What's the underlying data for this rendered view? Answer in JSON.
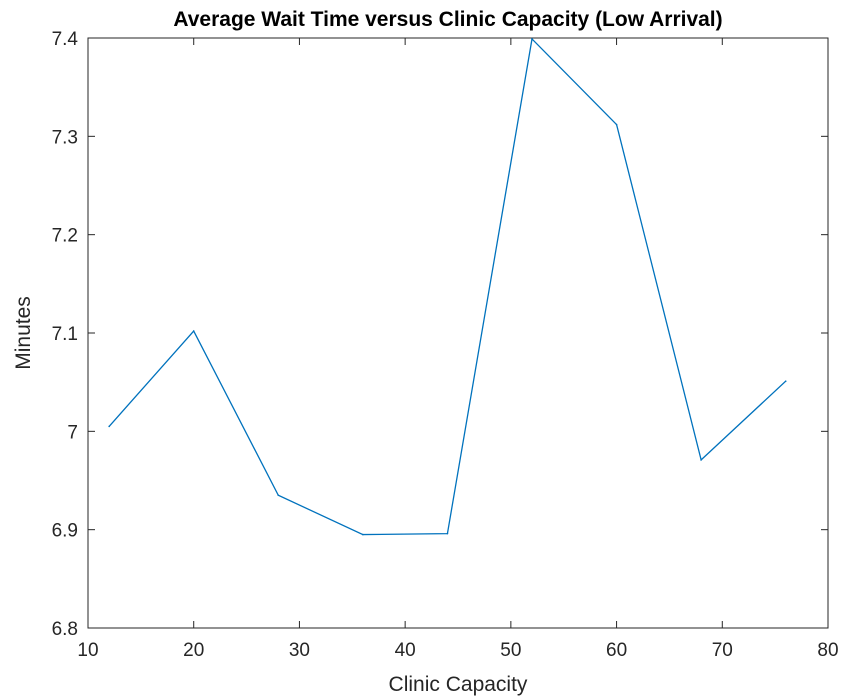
{
  "chart_data": {
    "type": "line",
    "title": "Average Wait Time versus Clinic Capacity (Low Arrival)",
    "xlabel": "Clinic Capacity",
    "ylabel": "Minutes",
    "xlim": [
      10,
      80
    ],
    "ylim": [
      6.8,
      7.4
    ],
    "xticks": [
      10,
      20,
      30,
      40,
      50,
      60,
      70,
      80
    ],
    "xtick_labels": [
      "10",
      "20",
      "30",
      "40",
      "50",
      "60",
      "70",
      "80"
    ],
    "yticks": [
      6.8,
      6.9,
      7.0,
      7.1,
      7.2,
      7.3,
      7.4
    ],
    "ytick_labels": [
      "6.8",
      "6.9",
      "7",
      "7.1",
      "7.2",
      "7.3",
      "7.4"
    ],
    "grid": false,
    "legend": "none",
    "series": [
      {
        "color": "#0072bd",
        "x": [
          12,
          20,
          28,
          36,
          44,
          52,
          60,
          68,
          76
        ],
        "y": [
          7.005,
          7.102,
          6.935,
          6.895,
          6.896,
          7.399,
          7.312,
          6.971,
          7.051
        ]
      }
    ]
  }
}
